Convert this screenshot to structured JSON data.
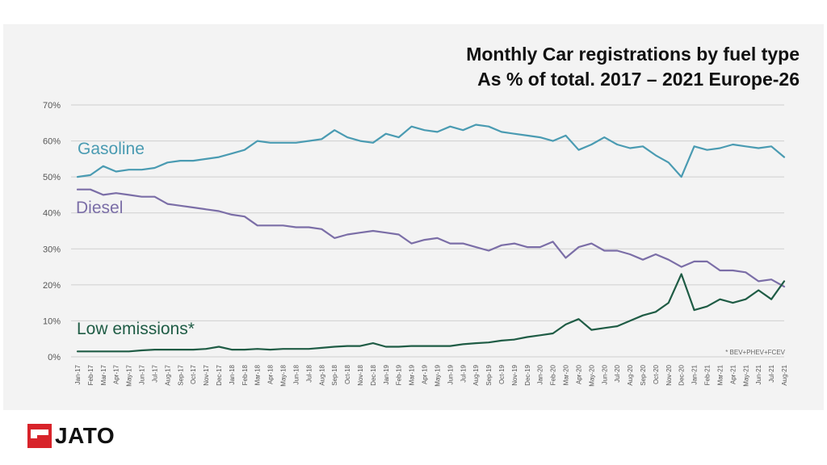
{
  "title": {
    "line1": "Monthly Car registrations by fuel type",
    "line2": "As % of total. 2017 – 2021 Europe-26"
  },
  "footnote": "* BEV+PHEV+FCEV",
  "brand": {
    "name": "JATO",
    "color": "#d8232a"
  },
  "chart_data": {
    "type": "line",
    "title": "Monthly Car registrations by fuel type As % of total. 2017 – 2021 Europe-26",
    "xlabel": "",
    "ylabel": "",
    "ylim": [
      0,
      70
    ],
    "yticks": [
      "0%",
      "10%",
      "20%",
      "30%",
      "40%",
      "50%",
      "60%",
      "70%"
    ],
    "grid": true,
    "categories": [
      "Jan-17",
      "Feb-17",
      "Mar-17",
      "Apr-17",
      "May-17",
      "Jun-17",
      "Jul-17",
      "Aug-17",
      "Sep-17",
      "Oct-17",
      "Nov-17",
      "Dec-17",
      "Jan-18",
      "Feb-18",
      "Mar-18",
      "Apr-18",
      "May-18",
      "Jun-18",
      "Jul-18",
      "Aug-18",
      "Sep-18",
      "Oct-18",
      "Nov-18",
      "Dec-18",
      "Jan-19",
      "Feb-19",
      "Mar-19",
      "Apr-19",
      "May-19",
      "Jun-19",
      "Jul-19",
      "Aug-19",
      "Sep-19",
      "Oct-19",
      "Nov-19",
      "Dec-19",
      "Jan-20",
      "Feb-20",
      "Mar-20",
      "Apr-20",
      "May-20",
      "Jun-20",
      "Jul-20",
      "Aug-20",
      "Sep-20",
      "Oct-20",
      "Nov-20",
      "Dec-20",
      "Jan-21",
      "Feb-21",
      "Mar-21",
      "Apr-21",
      "May-21",
      "Jun-21",
      "Jul-21",
      "Aug-21"
    ],
    "series": [
      {
        "name": "Gasoline",
        "color": "#4a9bb2",
        "values": [
          50,
          50.5,
          53,
          51.5,
          52,
          52,
          52.5,
          54,
          54.5,
          54.5,
          55,
          55.5,
          56.5,
          57.5,
          60,
          59.5,
          59.5,
          59.5,
          60,
          60.5,
          63,
          61,
          60,
          59.5,
          62,
          61,
          64,
          63,
          62.5,
          64,
          63,
          64.5,
          64,
          62.5,
          62,
          61.5,
          61,
          60,
          61.5,
          57.5,
          59,
          61,
          59,
          58,
          58.5,
          56,
          54,
          50,
          58.5,
          57.5,
          58,
          59,
          58.5,
          58,
          58.5,
          55.5
        ]
      },
      {
        "name": "Diesel",
        "color": "#7b6ea7",
        "values": [
          46.5,
          46.5,
          45,
          45.5,
          45,
          44.5,
          44.5,
          42.5,
          42,
          41.5,
          41,
          40.5,
          39.5,
          39,
          36.5,
          36.5,
          36.5,
          36,
          36,
          35.5,
          33,
          34,
          34.5,
          35,
          34.5,
          34,
          31.5,
          32.5,
          33,
          31.5,
          31.5,
          30.5,
          29.5,
          31,
          31.5,
          30.5,
          30.5,
          32,
          27.5,
          30.5,
          31.5,
          29.5,
          29.5,
          28.5,
          27,
          28.5,
          27,
          25,
          26.5,
          26.5,
          24,
          24,
          23.5,
          21,
          21.5,
          19.5
        ]
      },
      {
        "name": "Low emissions*",
        "color": "#1f5c45",
        "values": [
          1.5,
          1.5,
          1.5,
          1.5,
          1.5,
          1.8,
          2,
          2,
          2,
          2,
          2.2,
          2.8,
          2,
          2,
          2.2,
          2,
          2.2,
          2.2,
          2.2,
          2.5,
          2.8,
          3,
          3,
          3.8,
          2.8,
          2.8,
          3,
          3,
          3,
          3,
          3.5,
          3.8,
          4,
          4.5,
          4.8,
          5.5,
          6,
          6.5,
          9,
          10.5,
          7.5,
          8,
          8.5,
          10,
          11.5,
          12.5,
          15,
          23,
          13,
          14,
          16,
          15,
          16,
          18.5,
          16,
          21
        ]
      }
    ]
  }
}
